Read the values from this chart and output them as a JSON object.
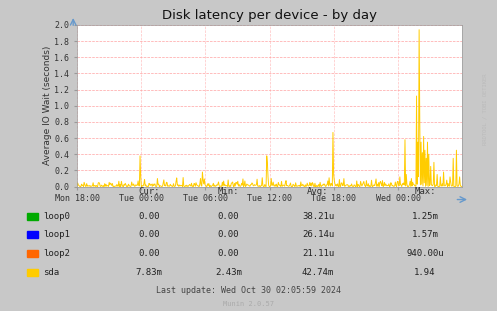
{
  "title": "Disk latency per device - by day",
  "ylabel": "Average IO Wait (seconds)",
  "background_color": "#c8c8c8",
  "plot_background": "#ffffff",
  "grid_color": "#ff9999",
  "ylim": [
    0,
    2.0
  ],
  "yticks": [
    0.0,
    0.2,
    0.4,
    0.6,
    0.8,
    1.0,
    1.2,
    1.4,
    1.6,
    1.8,
    2.0
  ],
  "xlabels": [
    "Mon 18:00",
    "Tue 00:00",
    "Tue 06:00",
    "Tue 12:00",
    "Tue 18:00",
    "Wed 00:00"
  ],
  "series": [
    {
      "label": "loop0",
      "color": "#00aa00"
    },
    {
      "label": "loop1",
      "color": "#0000ff"
    },
    {
      "label": "loop2",
      "color": "#ff6600"
    },
    {
      "label": "sda",
      "color": "#ffcc00"
    }
  ],
  "legend_data": [
    [
      "loop0",
      "0.00",
      "0.00",
      "38.21u",
      "1.25m"
    ],
    [
      "loop1",
      "0.00",
      "0.00",
      "26.14u",
      "1.57m"
    ],
    [
      "loop2",
      "0.00",
      "0.00",
      "21.11u",
      "940.00u"
    ],
    [
      "sda",
      "7.83m",
      "2.43m",
      "42.74m",
      "1.94"
    ]
  ],
  "last_update": "Last update: Wed Oct 30 02:05:59 2024",
  "munin_version": "Munin 2.0.57",
  "rrdtool_label": "RRDTOOL / TOBI OETIKER",
  "num_points": 600
}
